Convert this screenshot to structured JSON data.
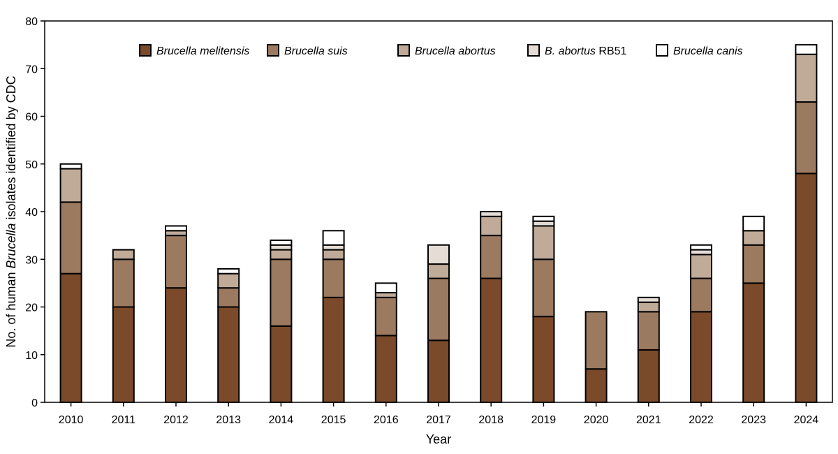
{
  "chart_data": {
    "type": "bar",
    "stacked": true,
    "xlabel": "Year",
    "ylabel_parts": [
      {
        "text": "No. of human ",
        "italic": false
      },
      {
        "text": "Brucella",
        "italic": true
      },
      {
        "text": " isolates identified by CDC",
        "italic": false
      }
    ],
    "ylim": [
      0,
      80
    ],
    "yticks": [
      0,
      10,
      20,
      30,
      40,
      50,
      60,
      70,
      80
    ],
    "grid": false,
    "legend_position": "top",
    "categories": [
      "2010",
      "2011",
      "2012",
      "2013",
      "2014",
      "2015",
      "2016",
      "2017",
      "2018",
      "2019",
      "2020",
      "2021",
      "2022",
      "2023",
      "2024"
    ],
    "series": [
      {
        "name": "Brucella melitensis",
        "legend_parts": [
          {
            "text": "Brucella melitensis",
            "italic": true
          }
        ],
        "color": "#7b4a2a",
        "values": [
          27,
          20,
          24,
          20,
          16,
          22,
          14,
          13,
          26,
          18,
          7,
          11,
          19,
          25,
          48
        ]
      },
      {
        "name": "Brucella suis",
        "legend_parts": [
          {
            "text": "Brucella suis",
            "italic": true
          }
        ],
        "color": "#9b7a60",
        "values": [
          15,
          10,
          11,
          4,
          14,
          8,
          8,
          13,
          9,
          12,
          12,
          8,
          7,
          8,
          15
        ]
      },
      {
        "name": "Brucella abortus",
        "legend_parts": [
          {
            "text": "Brucella abortus",
            "italic": true
          }
        ],
        "color": "#c0ab98",
        "values": [
          7,
          2,
          1,
          3,
          2,
          2,
          1,
          3,
          4,
          7,
          0,
          2,
          5,
          3,
          10
        ]
      },
      {
        "name": "B. abortus RB51",
        "legend_parts": [
          {
            "text": "B. abortus",
            "italic": true
          },
          {
            "text": " RB51",
            "italic": false
          }
        ],
        "color": "#e5dcd6",
        "values": [
          0,
          0,
          0,
          0,
          1,
          1,
          0,
          4,
          1,
          1,
          0,
          1,
          1,
          0,
          0
        ]
      },
      {
        "name": "Brucella canis",
        "legend_parts": [
          {
            "text": "Brucella canis",
            "italic": true
          }
        ],
        "color": "#ffffff",
        "values": [
          1,
          0,
          1,
          1,
          1,
          3,
          2,
          0,
          0,
          1,
          0,
          0,
          1,
          3,
          2
        ]
      }
    ]
  }
}
